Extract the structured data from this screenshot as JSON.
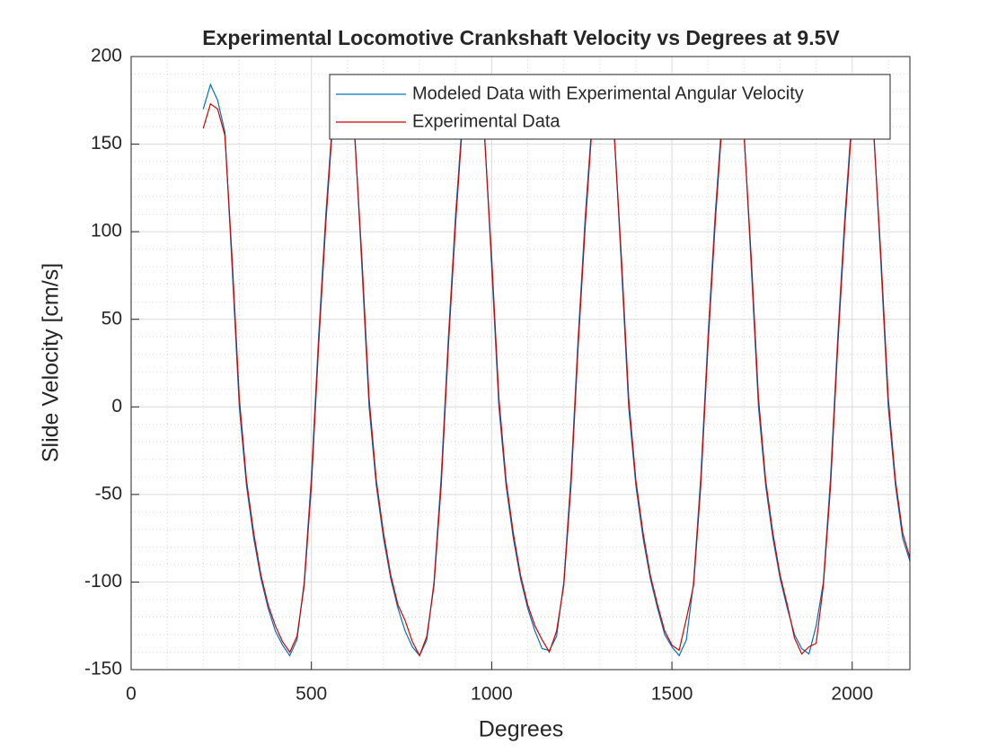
{
  "chart_data": {
    "type": "line",
    "title": "Experimental Locomotive Crankshaft Velocity vs Degrees at 9.5V",
    "x_label": "Degrees",
    "y_label": "Slide Velocity [cm/s]",
    "x": [
      200,
      220,
      240,
      260,
      280,
      300,
      320,
      340,
      360,
      380,
      400,
      420,
      440,
      460,
      480,
      500,
      520,
      540,
      560,
      580,
      600,
      620,
      640,
      660,
      680,
      700,
      720,
      740,
      760,
      780,
      800,
      820,
      840,
      860,
      880,
      900,
      920,
      940,
      960,
      980,
      1000,
      1020,
      1040,
      1060,
      1080,
      1100,
      1120,
      1140,
      1160,
      1180,
      1200,
      1220,
      1240,
      1260,
      1280,
      1300,
      1320,
      1340,
      1360,
      1380,
      1400,
      1420,
      1440,
      1460,
      1480,
      1500,
      1520,
      1540,
      1560,
      1580,
      1600,
      1620,
      1640,
      1660,
      1680,
      1700,
      1720,
      1740,
      1760,
      1780,
      1800,
      1820,
      1840,
      1860,
      1880,
      1900,
      1920,
      1940,
      1960,
      1980,
      2000,
      2020,
      2040,
      2060,
      2080,
      2100,
      2120,
      2140,
      2160
    ],
    "series": [
      {
        "name": "Modeled Data with Experimental Angular Velocity",
        "color": "#0072bd",
        "values": [
          170,
          184,
          175,
          157,
          80,
          0,
          -45,
          -75,
          -98,
          -115,
          -128,
          -136,
          -142,
          -133,
          -100,
          -40,
          40,
          110,
          168,
          184,
          175,
          157,
          80,
          0,
          -45,
          -75,
          -98,
          -115,
          -128,
          -137,
          -142,
          -133,
          -100,
          -40,
          40,
          110,
          168,
          184,
          175,
          157,
          80,
          0,
          -45,
          -75,
          -98,
          -115,
          -128,
          -138,
          -139,
          -131,
          -100,
          -40,
          40,
          110,
          168,
          184,
          175,
          157,
          80,
          0,
          -45,
          -75,
          -98,
          -115,
          -130,
          -137,
          -142,
          -133,
          -100,
          -40,
          40,
          110,
          168,
          184,
          175,
          157,
          80,
          0,
          -45,
          -75,
          -98,
          -115,
          -130,
          -138,
          -141,
          -125,
          -100,
          -40,
          40,
          110,
          168,
          184,
          175,
          157,
          80,
          0,
          -45,
          -75,
          -88
        ]
      },
      {
        "name": "Experimental Data",
        "color": "#d40000",
        "values": [
          159,
          173,
          170,
          155,
          85,
          5,
          -42,
          -72,
          -96,
          -113,
          -125,
          -134,
          -140,
          -131,
          -102,
          -45,
          35,
          105,
          165,
          176,
          172,
          155,
          85,
          5,
          -42,
          -72,
          -96,
          -113,
          -122,
          -134,
          -142,
          -131,
          -102,
          -45,
          35,
          105,
          165,
          176,
          172,
          155,
          85,
          5,
          -42,
          -72,
          -96,
          -113,
          -125,
          -133,
          -140,
          -128,
          -102,
          -45,
          35,
          105,
          165,
          176,
          172,
          155,
          85,
          5,
          -42,
          -72,
          -96,
          -113,
          -128,
          -136,
          -139,
          -121,
          -102,
          -45,
          35,
          105,
          165,
          176,
          172,
          155,
          85,
          5,
          -42,
          -72,
          -96,
          -113,
          -132,
          -141,
          -137,
          -135,
          -102,
          -45,
          35,
          105,
          165,
          176,
          172,
          155,
          85,
          5,
          -42,
          -72,
          -86
        ]
      }
    ],
    "xlim": [
      0,
      2160
    ],
    "ylim": [
      -150,
      200
    ],
    "xticks": [
      0,
      500,
      1000,
      1500,
      2000
    ],
    "yticks": [
      -150,
      -100,
      -50,
      0,
      50,
      100,
      150,
      200
    ],
    "grid": true,
    "minor_grid": true,
    "legend": "northeast"
  }
}
